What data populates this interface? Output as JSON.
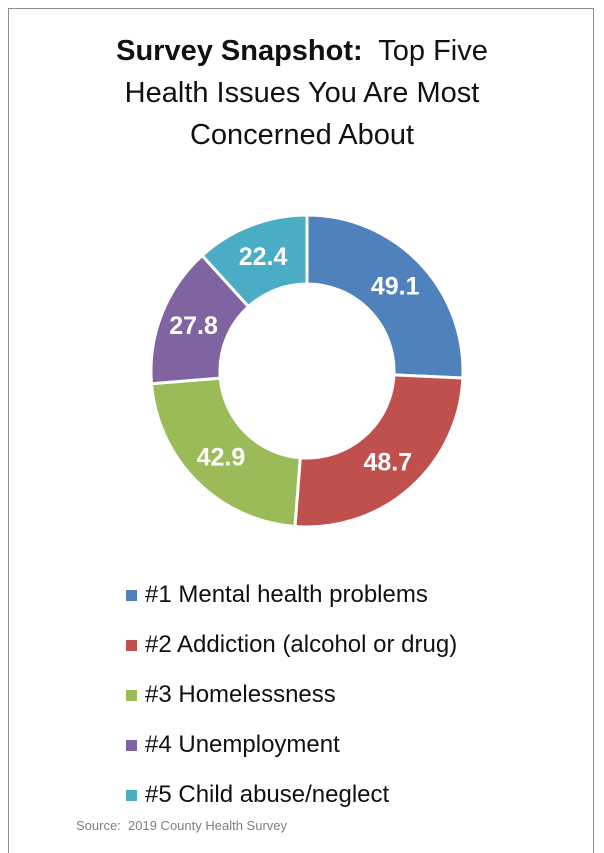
{
  "title": {
    "bold": "Survey Snapshot:",
    "line1_rest": "Top Five",
    "line2": "Health Issues You Are Most",
    "line3": "Concerned About"
  },
  "chart_data": {
    "type": "pie",
    "categories": [
      "#1 Mental health problems",
      "#2 Addiction (alcohol or drug)",
      "#3 Homelessness",
      "#4 Unemployment",
      "#5 Child abuse/neglect"
    ],
    "values": [
      49.1,
      48.7,
      42.9,
      27.8,
      22.4
    ],
    "labels": [
      "49.1",
      "48.7",
      "42.9",
      "27.8",
      "22.4"
    ],
    "colors": [
      "#4f81bd",
      "#c0504d",
      "#9bbb59",
      "#8064a2",
      "#4bacc6"
    ],
    "legend_position": "bottom",
    "donut": true
  },
  "source": "Source:  2019 County Health Survey"
}
